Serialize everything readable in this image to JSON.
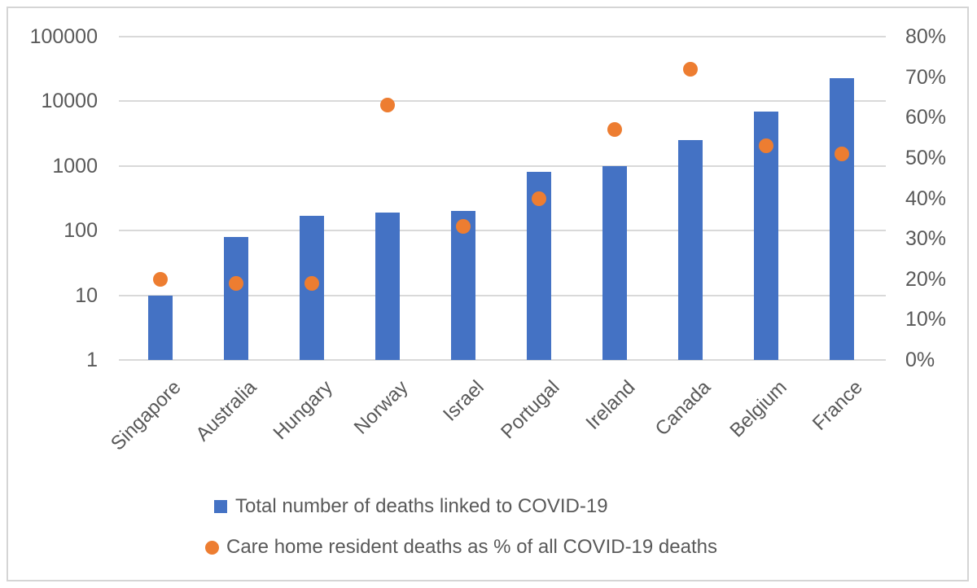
{
  "chart_data": {
    "type": "bar",
    "subtype": "combo-bar-scatter",
    "title": "",
    "categories": [
      "Singapore",
      "Australia",
      "Hungary",
      "Norway",
      "Israel",
      "Portugal",
      "Ireland",
      "Canada",
      "Belgium",
      "France"
    ],
    "series": [
      {
        "name": "Total number of deaths linked to COVID-19",
        "type": "bar",
        "axis": "left",
        "color": "#4472C4",
        "values": [
          10,
          80,
          170,
          190,
          200,
          800,
          1000,
          2500,
          7000,
          22500
        ]
      },
      {
        "name": "Care home resident deaths as % of all COVID-19 deaths",
        "type": "scatter",
        "axis": "right",
        "color": "#ED7D31",
        "unit": "%",
        "values": [
          20,
          19,
          19,
          63,
          33,
          40,
          57,
          72,
          53,
          51
        ]
      }
    ],
    "left_axis": {
      "scale": "log",
      "min": 1,
      "max": 100000,
      "tick_labels": [
        "100000",
        "10000",
        "1000",
        "100",
        "10",
        "1"
      ]
    },
    "right_axis": {
      "scale": "linear",
      "min": 0,
      "max": 80,
      "unit": "%",
      "tick_labels": [
        "80%",
        "70%",
        "60%",
        "50%",
        "40%",
        "30%",
        "20%",
        "10%",
        "0%"
      ]
    },
    "grid": true,
    "legend_position": "bottom"
  },
  "colors": {
    "bar": "#4472C4",
    "dot": "#ED7D31",
    "gridline": "#D9D9D9",
    "axis_text": "#595959",
    "frame_border": "#D5D5D5",
    "background": "#FFFFFF"
  }
}
